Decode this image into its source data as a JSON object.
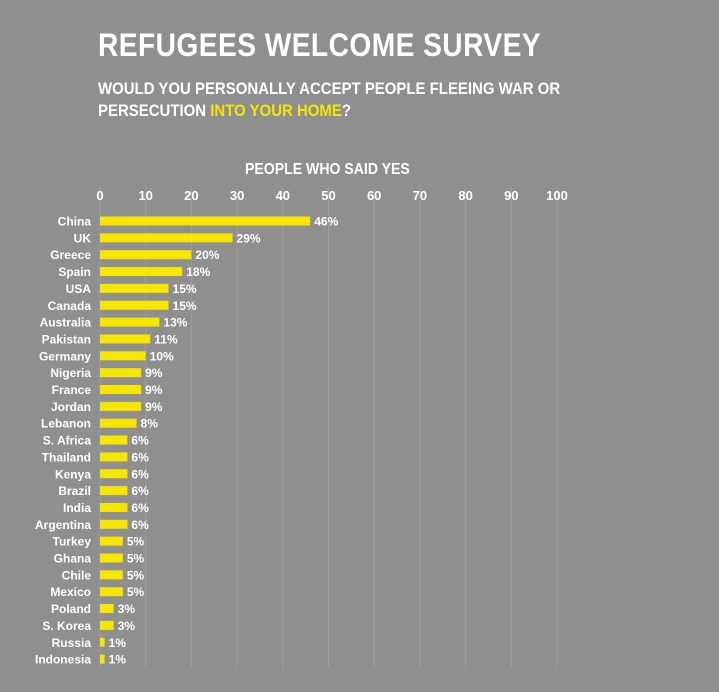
{
  "title": "REFUGEES WELCOME SURVEY",
  "subtitle": {
    "line1": "WOULD YOU PERSONALLY ACCEPT PEOPLE FLEEING WAR OR",
    "line2_prefix": "PERSECUTION ",
    "line2_highlight": "INTO YOUR HOME",
    "line2_suffix": "?"
  },
  "colors": {
    "background": "#8f8f8f",
    "bar": "#f7e600",
    "text": "#ffffff",
    "grid": "#9e9e9e"
  },
  "chart_data": {
    "type": "bar",
    "orientation": "horizontal",
    "xlabel": "PEOPLE WHO SAID YES",
    "xlim": [
      0,
      100
    ],
    "xticks": [
      "0",
      "10",
      "20",
      "30",
      "40",
      "50",
      "60",
      "70",
      "80",
      "90",
      "100"
    ],
    "grid": true,
    "categories": [
      "China",
      "UK",
      "Greece",
      "Spain",
      "USA",
      "Canada",
      "Australia",
      "Pakistan",
      "Germany",
      "Nigeria",
      "France",
      "Jordan",
      "Lebanon",
      "S. Africa",
      "Thailand",
      "Kenya",
      "Brazil",
      "India",
      "Argentina",
      "Turkey",
      "Ghana",
      "Chile",
      "Mexico",
      "Poland",
      "S. Korea",
      "Russia",
      "Indonesia"
    ],
    "values": [
      46,
      29,
      20,
      18,
      15,
      15,
      13,
      11,
      10,
      9,
      9,
      9,
      8,
      6,
      6,
      6,
      6,
      6,
      6,
      5,
      5,
      5,
      5,
      3,
      3,
      1,
      1
    ],
    "labels": [
      "46%",
      "29%",
      "20%",
      "18%",
      "15%",
      "15%",
      "13%",
      "11%",
      "10%",
      "9%",
      "9%",
      "9%",
      "8%",
      "6%",
      "6%",
      "6%",
      "6%",
      "6%",
      "6%",
      "5%",
      "5%",
      "5%",
      "5%",
      "3%",
      "3%",
      "1%",
      "1%"
    ]
  }
}
